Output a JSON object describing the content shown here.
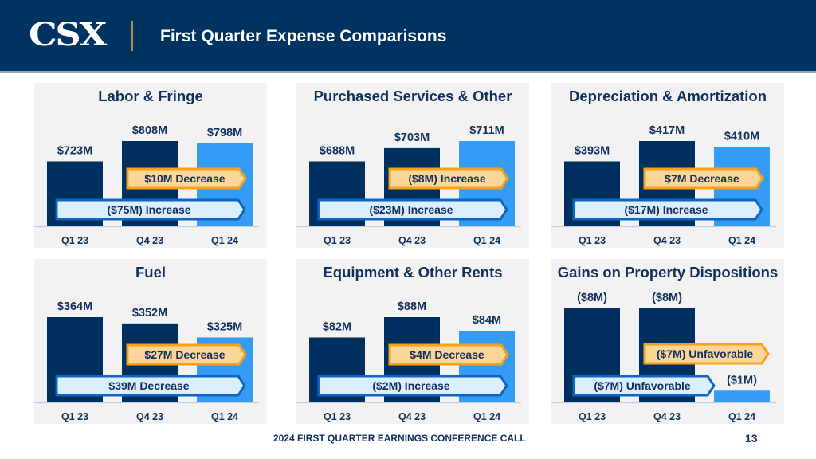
{
  "header": {
    "logo": "CSX",
    "title": "First Quarter Expense Comparisons"
  },
  "footer": {
    "text": "2024 FIRST QUARTER EARNINGS CONFERENCE CALL",
    "page_number": "13"
  },
  "colors": {
    "header_bg": "#003262",
    "bar_prior": "#00305f",
    "bar_current": "#349cf4",
    "panel_bg": "#f2f2f2",
    "text": "#12305e",
    "arrow_orange_fill": "#fcd599",
    "arrow_orange_border": "#f7a21b",
    "arrow_blue_fill": "#daeeff",
    "arrow_blue_border": "#1065c0"
  },
  "chart_data": [
    {
      "type": "bar",
      "title": "Labor & Fringe",
      "categories": [
        "Q1 23",
        "Q4 23",
        "Q1 24"
      ],
      "values": [
        723,
        808,
        798
      ],
      "value_labels": [
        "$723M",
        "$808M",
        "$798M"
      ],
      "units": "$M",
      "annotations": {
        "sequential": "$10M Decrease",
        "year_over_year": "($75M) Increase"
      }
    },
    {
      "type": "bar",
      "title": "Purchased Services & Other",
      "categories": [
        "Q1 23",
        "Q4 23",
        "Q1 24"
      ],
      "values": [
        688,
        703,
        711
      ],
      "value_labels": [
        "$688M",
        "$703M",
        "$711M"
      ],
      "units": "$M",
      "annotations": {
        "sequential": "($8M) Increase",
        "year_over_year": "($23M) Increase"
      }
    },
    {
      "type": "bar",
      "title": "Depreciation & Amortization",
      "categories": [
        "Q1 23",
        "Q4 23",
        "Q1 24"
      ],
      "values": [
        393,
        417,
        410
      ],
      "value_labels": [
        "$393M",
        "$417M",
        "$410M"
      ],
      "units": "$M",
      "annotations": {
        "sequential": "$7M Decrease",
        "year_over_year": "($17M) Increase"
      }
    },
    {
      "type": "bar",
      "title": "Fuel",
      "categories": [
        "Q1 23",
        "Q4 23",
        "Q1 24"
      ],
      "values": [
        364,
        352,
        325
      ],
      "value_labels": [
        "$364M",
        "$352M",
        "$325M"
      ],
      "units": "$M",
      "annotations": {
        "sequential": "$27M Decrease",
        "year_over_year": "$39M Decrease"
      }
    },
    {
      "type": "bar",
      "title": "Equipment & Other Rents",
      "categories": [
        "Q1 23",
        "Q4 23",
        "Q1 24"
      ],
      "values": [
        82,
        88,
        84
      ],
      "value_labels": [
        "$82M",
        "$88M",
        "$84M"
      ],
      "units": "$M",
      "annotations": {
        "sequential": "$4M Decrease",
        "year_over_year": "($2M) Increase"
      }
    },
    {
      "type": "bar",
      "title": "Gains on Property Dispositions",
      "categories": [
        "Q1 23",
        "Q4 23",
        "Q1 24"
      ],
      "values": [
        -8,
        -8,
        -1
      ],
      "value_labels": [
        "($8M)",
        "($8M)",
        "($1M)"
      ],
      "units": "$M",
      "annotations": {
        "sequential": "($7M) Unfavorable",
        "year_over_year": "($7M) Unfavorable"
      }
    }
  ]
}
